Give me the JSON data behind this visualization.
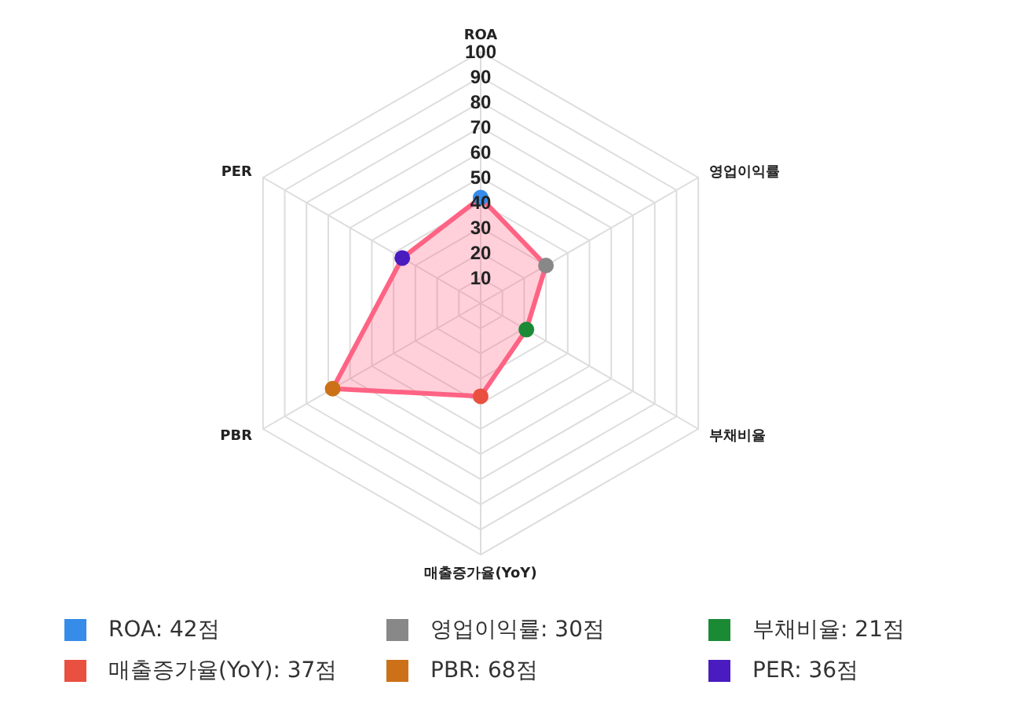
{
  "chart_data": {
    "type": "radar",
    "categories": [
      "ROA",
      "영업이익률",
      "부채비율",
      "매출증가율(YoY)",
      "PBR",
      "PER"
    ],
    "series": [
      {
        "color": "#ff6384",
        "values": [
          42,
          30,
          21,
          37,
          68,
          36
        ],
        "colors": [
          "#368ce8",
          "#888888",
          "#1b8a35",
          "#ea5040",
          "#cc7118",
          "#4a1cc0"
        ]
      },
      {
        "name": "ROA: 42점",
        "color": "#368ce8",
        "values": [
          null,
          null,
          null,
          null,
          null,
          null
        ]
      },
      {
        "name": "영업이익률: 30점",
        "color": "#888888",
        "values": [
          null,
          null,
          null,
          null,
          null,
          null
        ]
      },
      {
        "name": "부채비율: 21점",
        "color": "#1b8a35",
        "values": [
          null,
          null,
          null,
          null,
          null,
          null
        ]
      },
      {
        "name": "매출증가율(YoY): 37점",
        "color": "#ea5040",
        "values": [
          null,
          null,
          null,
          null,
          null,
          null
        ]
      },
      {
        "name": "PBR: 68점",
        "color": "#cc7118",
        "values": [
          null,
          null,
          null,
          null,
          null,
          null
        ]
      },
      {
        "name": "PER: 36점",
        "color": "#4a1cc0",
        "values": [
          null,
          null,
          null,
          null,
          null,
          null
        ]
      }
    ],
    "ylim": [
      0,
      100
    ],
    "yticks": [
      10,
      20,
      30,
      40,
      50,
      60,
      70,
      80,
      90,
      100
    ],
    "grid": true,
    "legend": "bottom",
    "marker": "circle"
  }
}
